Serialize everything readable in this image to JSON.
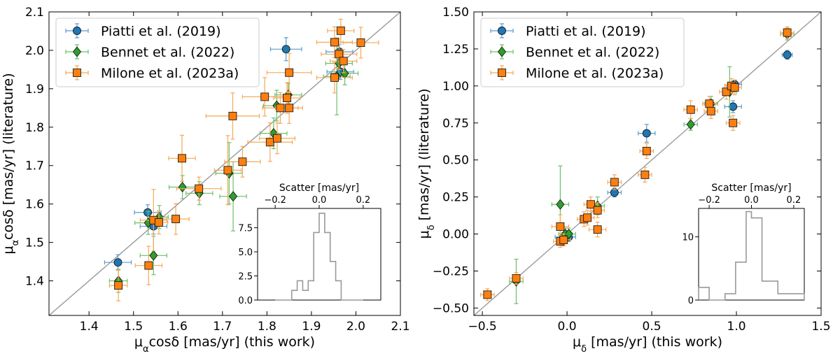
{
  "series_styles": [
    {
      "name": "Piatti et al. (2019)",
      "marker": "circle",
      "fill": "#1f77b4",
      "edge": "#1a1a1a",
      "err": "#5a9bd0"
    },
    {
      "name": "Bennet et al. (2022)",
      "marker": "diamond",
      "fill": "#2ca02c",
      "edge": "#1a1a1a",
      "err": "#6cbf6c"
    },
    {
      "name": "Milone et al. (2023a)",
      "marker": "square",
      "fill": "#ff7f0e",
      "edge": "#1a1a1a",
      "err": "#f7a857"
    }
  ],
  "chart_data": [
    {
      "type": "scatter",
      "title": "",
      "xlabel_main": "μ",
      "xlabel_sub": "α",
      "xlabel_rest": "cosδ [mas/yr] (this work)",
      "ylabel_main": "μ",
      "ylabel_sub": "α",
      "ylabel_rest": "cosδ [mas/yr] (literature)",
      "xlim": [
        1.31,
        2.1
      ],
      "ylim": [
        1.31,
        2.1
      ],
      "xticks": [
        1.4,
        1.5,
        1.6,
        1.7,
        1.8,
        1.9,
        2.0,
        2.1
      ],
      "yticks": [
        1.4,
        1.5,
        1.6,
        1.7,
        1.8,
        1.9,
        2.0,
        2.1
      ],
      "tick_decimals": 1,
      "one_to_one_line": true,
      "legend": [
        "Piatti et al. (2019)",
        "Bennet et al. (2022)",
        "Milone et al. (2023a)"
      ],
      "legend_loc": "top-left",
      "series": [
        {
          "name": "Piatti et al. (2019)",
          "points": [
            {
              "x": 1.465,
              "y": 1.448,
              "xerr": 0.03,
              "yerr": 0.02
            },
            {
              "x": 1.532,
              "y": 1.578,
              "xerr": 0.03,
              "yerr": 0.02
            },
            {
              "x": 1.545,
              "y": 1.542,
              "xerr": 0.03,
              "yerr": 0.02
            },
            {
              "x": 1.843,
              "y": 2.003,
              "xerr": 0.035,
              "yerr": 0.03
            },
            {
              "x": 1.963,
              "y": 1.996,
              "xerr": 0.03,
              "yerr": 0.02
            },
            {
              "x": 1.965,
              "y": 1.944,
              "xerr": 0.03,
              "yerr": 0.02
            }
          ]
        },
        {
          "name": "Bennet et al. (2022)",
          "points": [
            {
              "x": 1.466,
              "y": 1.4,
              "xerr": 0.02,
              "yerr": 0.03
            },
            {
              "x": 1.533,
              "y": 1.551,
              "xerr": 0.03,
              "yerr": 0.03
            },
            {
              "x": 1.545,
              "y": 1.466,
              "xerr": 0.03,
              "yerr": 0.05
            },
            {
              "x": 1.558,
              "y": 1.566,
              "xerr": 0.02,
              "yerr": 0.03
            },
            {
              "x": 1.61,
              "y": 1.644,
              "xerr": 0.03,
              "yerr": 0.03
            },
            {
              "x": 1.648,
              "y": 1.628,
              "xerr": 0.03,
              "yerr": 0.03
            },
            {
              "x": 1.715,
              "y": 1.68,
              "xerr": 0.03,
              "yerr": 0.08
            },
            {
              "x": 1.724,
              "y": 1.62,
              "xerr": 0.03,
              "yerr": 0.09
            },
            {
              "x": 1.815,
              "y": 1.784,
              "xerr": 0.03,
              "yerr": 0.04
            },
            {
              "x": 1.822,
              "y": 1.856,
              "xerr": 0.03,
              "yerr": 0.04
            },
            {
              "x": 1.848,
              "y": 1.884,
              "xerr": 0.03,
              "yerr": 0.03
            },
            {
              "x": 1.957,
              "y": 1.932,
              "xerr": 0.03,
              "yerr": 0.1
            },
            {
              "x": 1.962,
              "y": 1.966,
              "xerr": 0.03,
              "yerr": 0.03
            },
            {
              "x": 1.975,
              "y": 1.94,
              "xerr": 0.03,
              "yerr": 0.03
            }
          ]
        },
        {
          "name": "Milone et al. (2023a)",
          "points": [
            {
              "x": 1.466,
              "y": 1.388,
              "xerr": 0.02,
              "yerr": 0.04
            },
            {
              "x": 1.534,
              "y": 1.44,
              "xerr": 0.03,
              "yerr": 0.05
            },
            {
              "x": 1.545,
              "y": 1.558,
              "xerr": 0.03,
              "yerr": 0.08
            },
            {
              "x": 1.557,
              "y": 1.552,
              "xerr": 0.02,
              "yerr": 0.03
            },
            {
              "x": 1.595,
              "y": 1.561,
              "xerr": 0.03,
              "yerr": 0.04
            },
            {
              "x": 1.609,
              "y": 1.719,
              "xerr": 0.03,
              "yerr": 0.06
            },
            {
              "x": 1.647,
              "y": 1.64,
              "xerr": 0.05,
              "yerr": 0.03
            },
            {
              "x": 1.712,
              "y": 1.688,
              "xerr": 0.03,
              "yerr": 0.09
            },
            {
              "x": 1.723,
              "y": 1.829,
              "xerr": 0.06,
              "yerr": 0.06
            },
            {
              "x": 1.745,
              "y": 1.71,
              "xerr": 0.04,
              "yerr": 0.04
            },
            {
              "x": 1.795,
              "y": 1.879,
              "xerr": 0.05,
              "yerr": 0.05
            },
            {
              "x": 1.807,
              "y": 1.761,
              "xerr": 0.05,
              "yerr": 0.05
            },
            {
              "x": 1.823,
              "y": 1.771,
              "xerr": 0.04,
              "yerr": 0.04
            },
            {
              "x": 1.83,
              "y": 1.85,
              "xerr": 0.04,
              "yerr": 0.04
            },
            {
              "x": 1.845,
              "y": 1.876,
              "xerr": 0.03,
              "yerr": 0.04
            },
            {
              "x": 1.85,
              "y": 1.85,
              "xerr": 0.03,
              "yerr": 0.04
            },
            {
              "x": 1.85,
              "y": 1.942,
              "xerr": 0.05,
              "yerr": 0.05
            },
            {
              "x": 1.952,
              "y": 1.929,
              "xerr": 0.04,
              "yerr": 0.04
            },
            {
              "x": 1.952,
              "y": 2.021,
              "xerr": 0.04,
              "yerr": 0.04
            },
            {
              "x": 1.962,
              "y": 1.99,
              "xerr": 0.04,
              "yerr": 0.04
            },
            {
              "x": 1.966,
              "y": 2.051,
              "xerr": 0.03,
              "yerr": 0.03
            },
            {
              "x": 1.972,
              "y": 1.972,
              "xerr": 0.03,
              "yerr": 0.03
            },
            {
              "x": 2.011,
              "y": 2.02,
              "xerr": 0.04,
              "yerr": 0.04
            }
          ]
        }
      ],
      "inset": {
        "type": "histogram",
        "xlabel": "Scatter [mas/yr]",
        "xlim": [
          -0.28,
          0.28
        ],
        "xticks": [
          -0.2,
          0.0,
          0.2
        ],
        "ylim": [
          0,
          9.5
        ],
        "yticks": [
          0.0,
          2.5,
          5.0,
          7.5
        ],
        "bin_edges": [
          -0.2,
          -0.175,
          -0.15,
          -0.125,
          -0.1,
          -0.075,
          -0.05,
          -0.025,
          0.0,
          0.025,
          0.05,
          0.075,
          0.1,
          0.125,
          0.15,
          0.175,
          0.2
        ],
        "counts": [
          0,
          0,
          0,
          1,
          2,
          1,
          2,
          7,
          9,
          7,
          4,
          2,
          0,
          0,
          0,
          0
        ]
      }
    },
    {
      "type": "scatter",
      "title": "",
      "xlabel_main": "μ",
      "xlabel_sub": "δ",
      "xlabel_rest": " [mas/yr] (this work)",
      "ylabel_main": "μ",
      "ylabel_sub": "δ",
      "ylabel_rest": " [mas/yr] (literature)",
      "xlim": [
        -0.55,
        1.5
      ],
      "ylim": [
        -0.55,
        1.5
      ],
      "xticks": [
        -0.5,
        0.0,
        0.5,
        1.0,
        1.5
      ],
      "yticks": [
        -0.5,
        -0.25,
        0.0,
        0.25,
        0.5,
        0.75,
        1.0,
        1.25,
        1.5
      ],
      "tick_decimals": 2,
      "one_to_one_line": true,
      "legend": [
        "Piatti et al. (2019)",
        "Bennet et al. (2022)",
        "Milone et al. (2023a)"
      ],
      "legend_loc": "top-left",
      "series": [
        {
          "name": "Piatti et al. (2019)",
          "points": [
            {
              "x": -0.02,
              "y": -0.02,
              "xerr": 0.05,
              "yerr": 0.03
            },
            {
              "x": 0.01,
              "y": -0.02,
              "xerr": 0.04,
              "yerr": 0.03
            },
            {
              "x": 0.28,
              "y": 0.28,
              "xerr": 0.04,
              "yerr": 0.03
            },
            {
              "x": 0.47,
              "y": 0.68,
              "xerr": 0.05,
              "yerr": 0.06
            },
            {
              "x": 0.98,
              "y": 0.86,
              "xerr": 0.05,
              "yerr": 0.04
            },
            {
              "x": 0.99,
              "y": 1.01,
              "xerr": 0.04,
              "yerr": 0.03
            },
            {
              "x": 1.3,
              "y": 1.21,
              "xerr": 0.03,
              "yerr": 0.03
            }
          ]
        },
        {
          "name": "Bennet et al. (2022)",
          "points": [
            {
              "x": -0.3,
              "y": -0.32,
              "xerr": 0.04,
              "yerr": 0.15
            },
            {
              "x": -0.04,
              "y": 0.2,
              "xerr": 0.05,
              "yerr": 0.26
            },
            {
              "x": -0.02,
              "y": -0.04,
              "xerr": 0.04,
              "yerr": 0.04
            },
            {
              "x": -0.01,
              "y": 0.0,
              "xerr": 0.04,
              "yerr": 0.04
            },
            {
              "x": 0.01,
              "y": 0.0,
              "xerr": 0.04,
              "yerr": 0.04
            },
            {
              "x": 0.18,
              "y": 0.19,
              "xerr": 0.04,
              "yerr": 0.06
            },
            {
              "x": 0.73,
              "y": 0.74,
              "xerr": 0.04,
              "yerr": 0.04
            },
            {
              "x": 0.85,
              "y": 0.88,
              "xerr": 0.04,
              "yerr": 0.05
            },
            {
              "x": 0.96,
              "y": 0.96,
              "xerr": 0.04,
              "yerr": 0.17
            },
            {
              "x": 1.3,
              "y": 1.35,
              "xerr": 0.04,
              "yerr": 0.04
            }
          ]
        },
        {
          "name": "Milone et al. (2023a)",
          "points": [
            {
              "x": -0.47,
              "y": -0.41,
              "xerr": 0.04,
              "yerr": 0.04
            },
            {
              "x": -0.3,
              "y": -0.3,
              "xerr": 0.04,
              "yerr": 0.04
            },
            {
              "x": -0.04,
              "y": 0.05,
              "xerr": 0.05,
              "yerr": 0.08
            },
            {
              "x": -0.04,
              "y": -0.05,
              "xerr": 0.04,
              "yerr": 0.04
            },
            {
              "x": -0.02,
              "y": -0.04,
              "xerr": 0.04,
              "yerr": 0.04
            },
            {
              "x": 0.1,
              "y": 0.1,
              "xerr": 0.04,
              "yerr": 0.05
            },
            {
              "x": 0.12,
              "y": 0.11,
              "xerr": 0.04,
              "yerr": 0.05
            },
            {
              "x": 0.14,
              "y": 0.2,
              "xerr": 0.04,
              "yerr": 0.05
            },
            {
              "x": 0.18,
              "y": 0.16,
              "xerr": 0.04,
              "yerr": 0.05
            },
            {
              "x": 0.18,
              "y": 0.03,
              "xerr": 0.05,
              "yerr": 0.05
            },
            {
              "x": 0.28,
              "y": 0.35,
              "xerr": 0.04,
              "yerr": 0.05
            },
            {
              "x": 0.46,
              "y": 0.4,
              "xerr": 0.04,
              "yerr": 0.05
            },
            {
              "x": 0.47,
              "y": 0.56,
              "xerr": 0.04,
              "yerr": 0.05
            },
            {
              "x": 0.73,
              "y": 0.84,
              "xerr": 0.04,
              "yerr": 0.06
            },
            {
              "x": 0.84,
              "y": 0.88,
              "xerr": 0.04,
              "yerr": 0.05
            },
            {
              "x": 0.85,
              "y": 0.83,
              "xerr": 0.04,
              "yerr": 0.05
            },
            {
              "x": 0.94,
              "y": 0.96,
              "xerr": 0.04,
              "yerr": 0.05
            },
            {
              "x": 0.97,
              "y": 1.0,
              "xerr": 0.04,
              "yerr": 0.05
            },
            {
              "x": 0.98,
              "y": 0.75,
              "xerr": 0.04,
              "yerr": 0.05
            },
            {
              "x": 0.99,
              "y": 0.99,
              "xerr": 0.04,
              "yerr": 0.05
            },
            {
              "x": 1.3,
              "y": 1.36,
              "xerr": 0.04,
              "yerr": 0.04
            }
          ]
        }
      ],
      "inset": {
        "type": "histogram",
        "xlabel": "Scatter [mas/yr]",
        "xlim": [
          -0.25,
          0.25
        ],
        "xticks": [
          -0.2,
          0.0,
          0.2
        ],
        "ylim": [
          0,
          14.5
        ],
        "yticks": [
          0,
          10
        ],
        "bin_edges": [
          -0.25,
          -0.225,
          -0.2,
          -0.175,
          -0.15,
          -0.125,
          -0.1,
          -0.075,
          -0.05,
          -0.025,
          0.0,
          0.025,
          0.05,
          0.075,
          0.1,
          0.125,
          0.15,
          0.175,
          0.2,
          0.225,
          0.25
        ],
        "counts": [
          2,
          2,
          0,
          0,
          0,
          1,
          1,
          6,
          6,
          14,
          13,
          13,
          3,
          3,
          3,
          1,
          1,
          1,
          1,
          1
        ]
      }
    }
  ]
}
